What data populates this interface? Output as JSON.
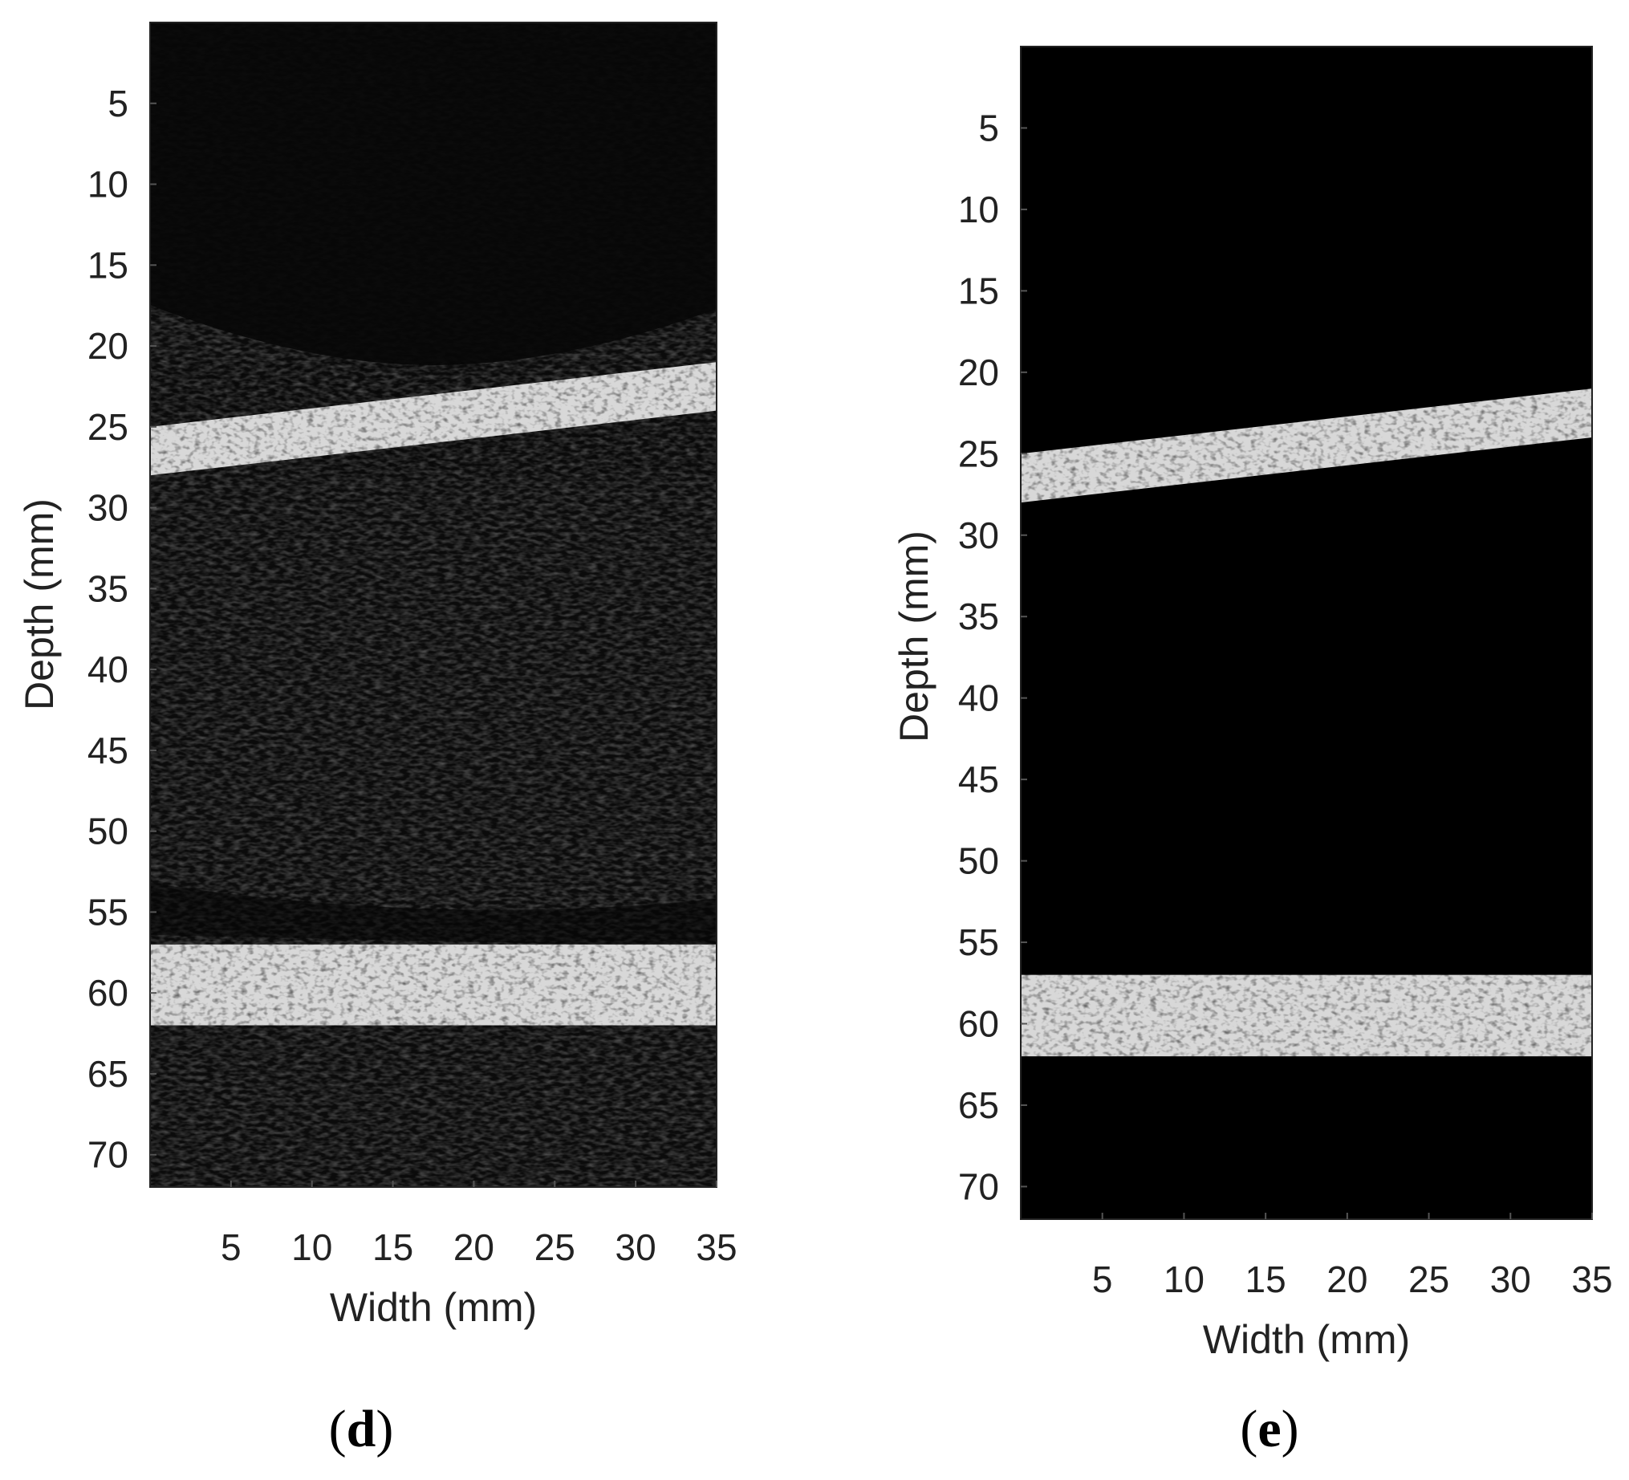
{
  "colors": {
    "background": "#ffffff",
    "image_background": "#0a0a0a",
    "bright_band": "#d8d8d8",
    "text": "#222222"
  },
  "panels": [
    {
      "id": "d",
      "label_open": "(",
      "label_letter": "d",
      "label_close": ")",
      "xlabel": "Width (mm)",
      "ylabel": "Depth (mm)",
      "xticks": [
        "5",
        "10",
        "15",
        "20",
        "25",
        "30",
        "35"
      ],
      "yticks": [
        "5",
        "10",
        "15",
        "20",
        "25",
        "30",
        "35",
        "40",
        "45",
        "50",
        "55",
        "60",
        "65",
        "70"
      ],
      "xlim": [
        0,
        35
      ],
      "ylim": [
        0,
        72
      ],
      "image": "ultrasound B-mode image with speckled soft tissue and two bright bands",
      "bands": [
        {
          "left_top": 25,
          "left_bottom": 28,
          "right_top": 21,
          "right_bottom": 24
        },
        {
          "left_top": 57,
          "left_bottom": 62,
          "right_top": 57,
          "right_bottom": 62
        }
      ]
    },
    {
      "id": "e",
      "label_open": "(",
      "label_letter": "e",
      "label_close": ")",
      "xlabel": "Width (mm)",
      "ylabel": "Depth (mm)",
      "xticks": [
        "5",
        "10",
        "15",
        "20",
        "25",
        "30",
        "35"
      ],
      "yticks": [
        "5",
        "10",
        "15",
        "20",
        "25",
        "30",
        "35",
        "40",
        "45",
        "50",
        "55",
        "60",
        "65",
        "70"
      ],
      "xlim": [
        0,
        35
      ],
      "ylim": [
        0,
        72
      ],
      "image": "segmented ultrasound image showing only two bright bands on black background",
      "bands": [
        {
          "left_top": 25,
          "left_bottom": 28,
          "right_top": 21,
          "right_bottom": 24
        },
        {
          "left_top": 57,
          "left_bottom": 62,
          "right_top": 57,
          "right_bottom": 62
        }
      ]
    }
  ]
}
